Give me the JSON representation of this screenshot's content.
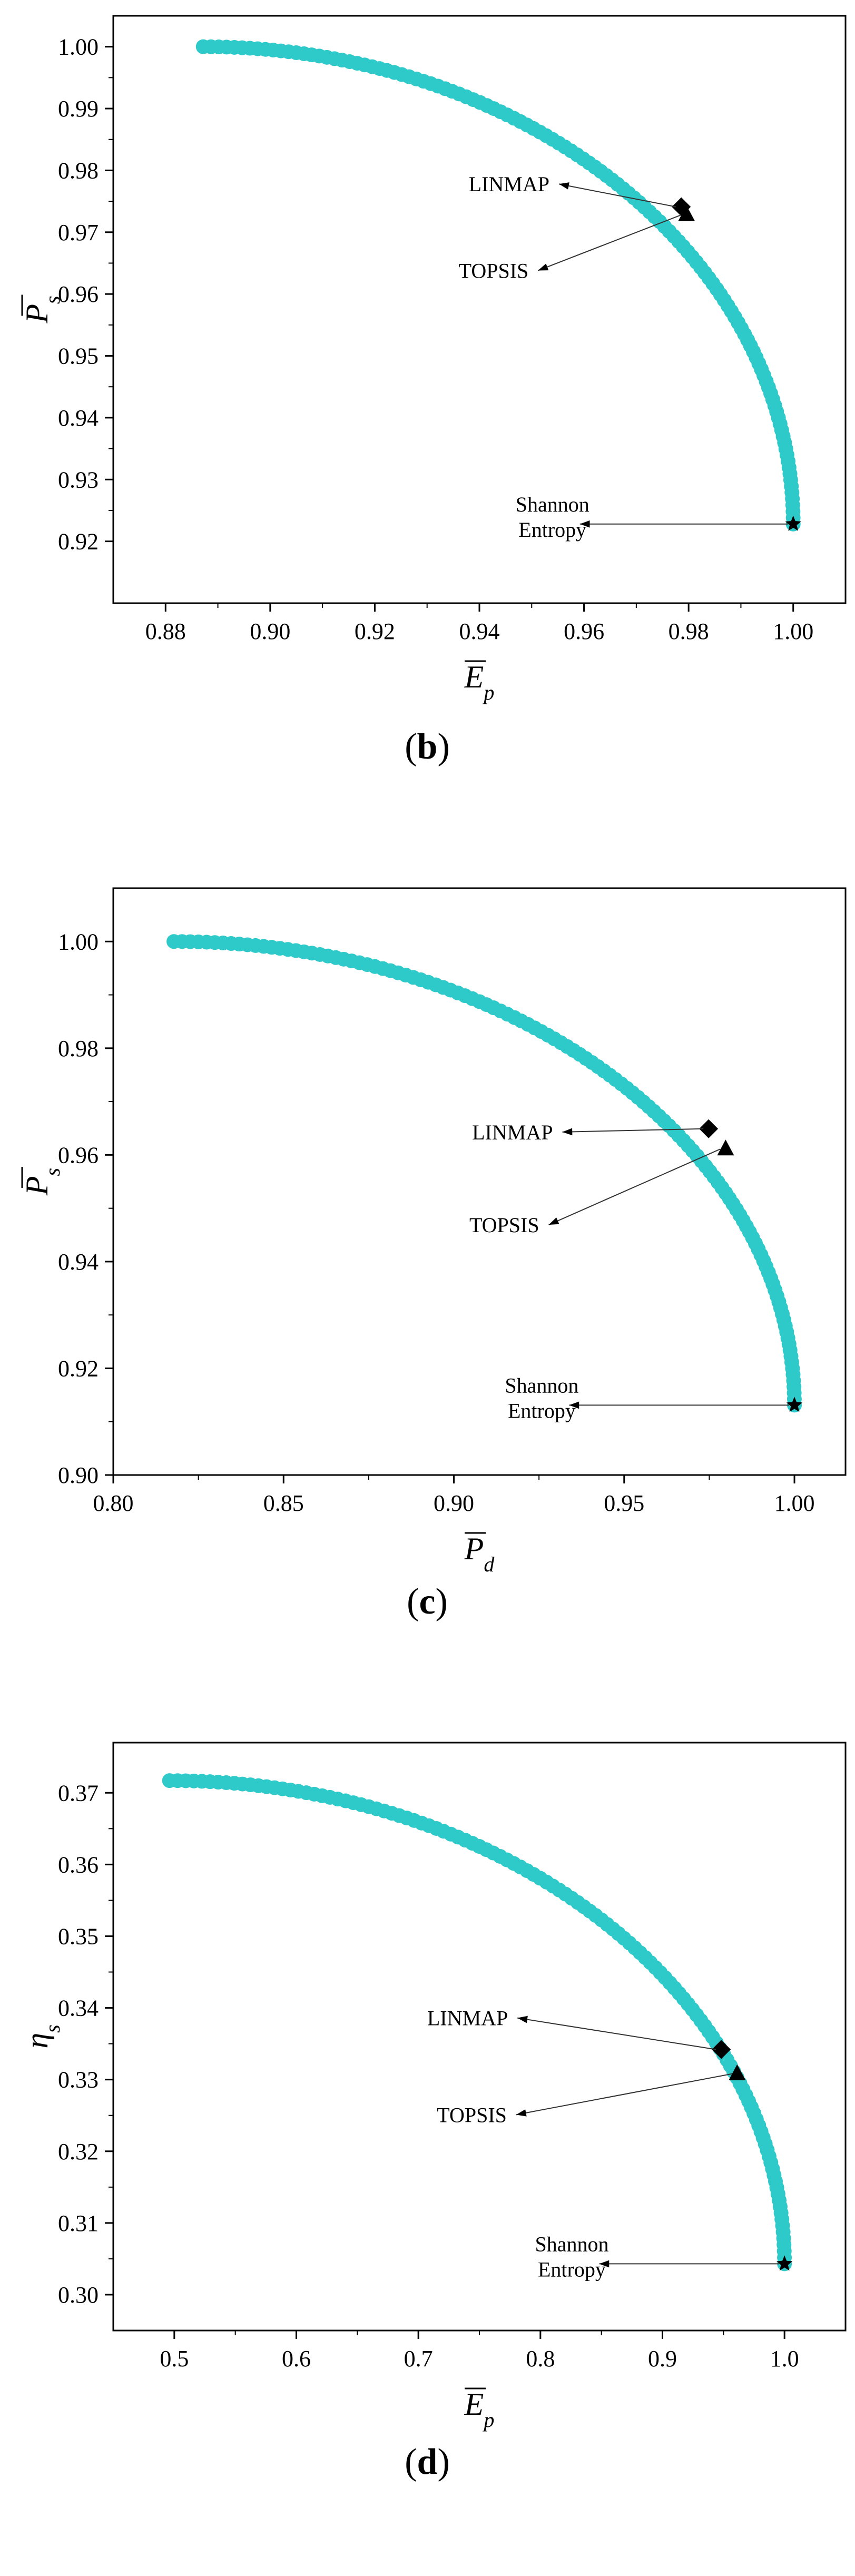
{
  "chart_data": [
    {
      "type": "scatter",
      "caption": "b",
      "xlabel": "E",
      "xlabel_sub": "p",
      "ylabel": "P",
      "ylabel_sub": "s",
      "xlim": [
        0.87,
        1.01
      ],
      "ylim": [
        0.91,
        1.005
      ],
      "xticks": [
        "0.88",
        "0.90",
        "0.92",
        "0.94",
        "0.96",
        "0.98",
        "1.00"
      ],
      "xtick_values": [
        0.88,
        0.9,
        0.92,
        0.94,
        0.96,
        0.98,
        1.0
      ],
      "yticks": [
        "0.92",
        "0.93",
        "0.94",
        "0.95",
        "0.96",
        "0.97",
        "0.98",
        "0.99",
        "1.00"
      ],
      "ytick_values": [
        0.92,
        0.93,
        0.94,
        0.95,
        0.96,
        0.97,
        0.98,
        0.99,
        1.0
      ],
      "pareto_front": {
        "x_start": 0.8872,
        "y_end": 0.9228,
        "color": "#2ec9c9",
        "points": 120
      },
      "markers": [
        {
          "name": "LINMAP",
          "symbol": "diamond",
          "x": 0.9786,
          "y": 0.9741,
          "label_x": 0.954,
          "label_y": 0.9778
        },
        {
          "name": "TOPSIS",
          "symbol": "triangle",
          "x": 0.9796,
          "y": 0.9728,
          "label_x": 0.95,
          "label_y": 0.9638
        },
        {
          "name": "Shannon Entropy",
          "label_lines": [
            "Shannon",
            "Entropy"
          ],
          "symbol": "star",
          "x": 1.0,
          "y": 0.9228,
          "label_x": 0.958,
          "label_y": 0.9228
        }
      ]
    },
    {
      "type": "scatter",
      "caption": "c",
      "xlabel": "P",
      "xlabel_sub": "d",
      "ylabel": "P",
      "ylabel_sub": "s",
      "xlim": [
        0.8,
        1.015
      ],
      "ylim": [
        0.9,
        1.01
      ],
      "xticks": [
        "0.80",
        "0.85",
        "0.90",
        "0.95",
        "1.00"
      ],
      "xtick_values": [
        0.8,
        0.85,
        0.9,
        0.95,
        1.0
      ],
      "yticks": [
        "0.90",
        "0.92",
        "0.94",
        "0.96",
        "0.98",
        "1.00"
      ],
      "ytick_values": [
        0.9,
        0.92,
        0.94,
        0.96,
        0.98,
        1.0
      ],
      "pareto_front": {
        "x_start": 0.8178,
        "y_end": 0.9131,
        "color": "#2ec9c9",
        "points": 120
      },
      "markers": [
        {
          "name": "LINMAP",
          "symbol": "diamond",
          "x": 0.9748,
          "y": 0.9649,
          "label_x": 0.93,
          "label_y": 0.9643
        },
        {
          "name": "TOPSIS",
          "symbol": "triangle",
          "x": 0.9798,
          "y": 0.9611,
          "label_x": 0.926,
          "label_y": 0.9469
        },
        {
          "name": "Shannon Entropy",
          "label_lines": [
            "Shannon",
            "Entropy"
          ],
          "symbol": "star",
          "x": 1.0,
          "y": 0.9131,
          "label_x": 0.932,
          "label_y": 0.9131
        }
      ]
    },
    {
      "type": "scatter",
      "caption": "d",
      "xlabel": "E",
      "xlabel_sub": "p",
      "ylabel": "η",
      "ylabel_sub": "s",
      "xlim": [
        0.45,
        1.05
      ],
      "ylim": [
        0.295,
        0.377
      ],
      "xticks": [
        "0.5",
        "0.6",
        "0.7",
        "0.8",
        "0.9",
        "1.0"
      ],
      "xtick_values": [
        0.5,
        0.6,
        0.7,
        0.8,
        0.9,
        1.0
      ],
      "yticks": [
        "0.30",
        "0.31",
        "0.32",
        "0.33",
        "0.34",
        "0.35",
        "0.36",
        "0.37"
      ],
      "ytick_values": [
        0.3,
        0.31,
        0.32,
        0.33,
        0.34,
        0.35,
        0.36,
        0.37
      ],
      "pareto_front": {
        "x_start": 0.4961,
        "y_end": 0.3043,
        "color": "#2ec9c9",
        "points": 120
      },
      "markers": [
        {
          "name": "LINMAP",
          "symbol": "diamond",
          "x": 0.9482,
          "y": 0.3342,
          "label_x": 0.776,
          "label_y": 0.3386
        },
        {
          "name": "TOPSIS",
          "symbol": "triangle",
          "x": 0.9612,
          "y": 0.3308,
          "label_x": 0.775,
          "label_y": 0.3251
        },
        {
          "name": "Shannon Entropy",
          "label_lines": [
            "Shannon",
            "Entropy"
          ],
          "symbol": "star",
          "x": 1.0,
          "y": 0.3043,
          "label_x": 0.843,
          "label_y": 0.3043
        }
      ]
    }
  ]
}
